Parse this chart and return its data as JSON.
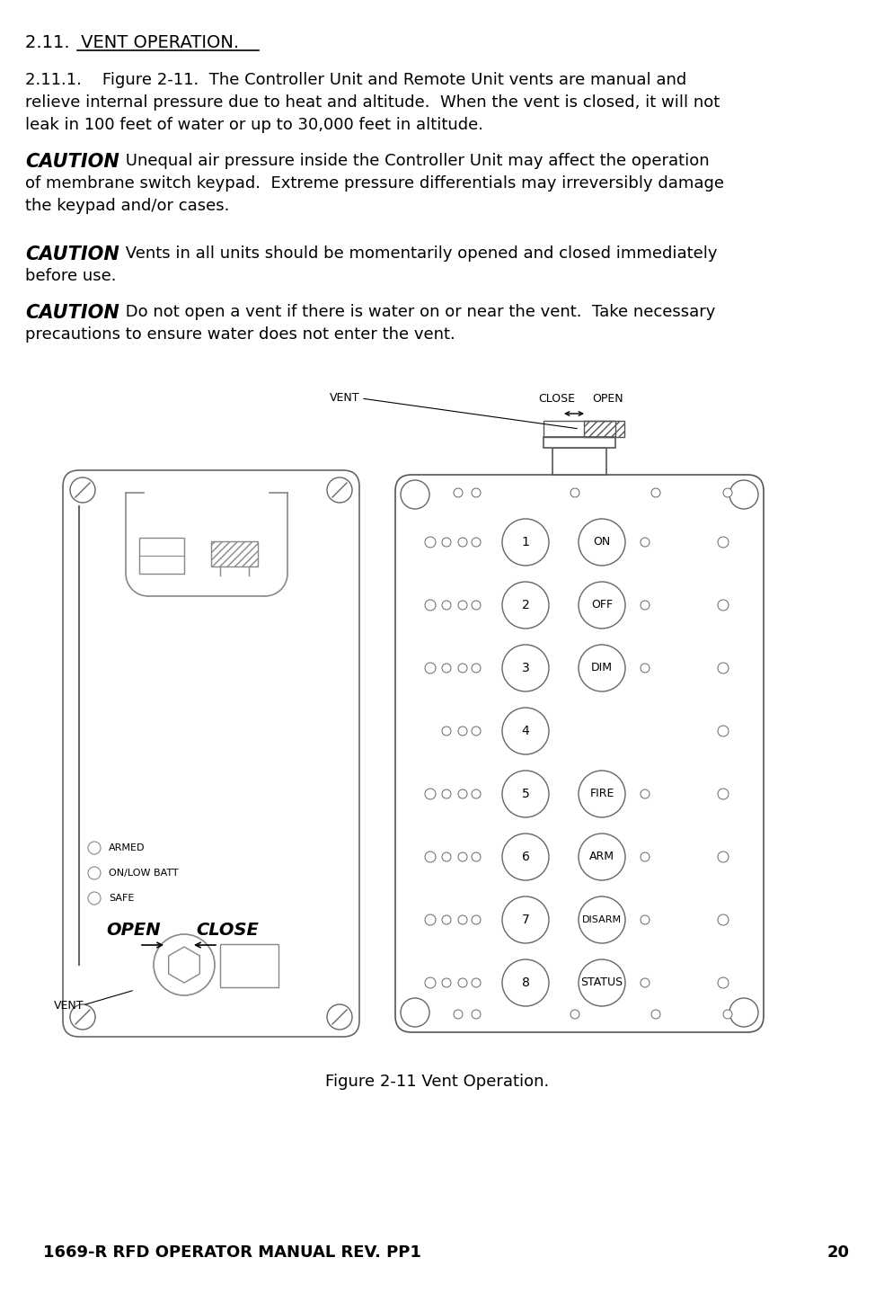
{
  "title": "2.11.  VENT OPERATION.",
  "para1_line1": "2.11.1.    Figure 2-11.  The Controller Unit and Remote Unit vents are manual and",
  "para1_line2": "relieve internal pressure due to heat and altitude.  When the vent is closed, it will not",
  "para1_line3": "leak in 100 feet of water or up to 30,000 feet in altitude.",
  "caution1_text": " Unequal air pressure inside the Controller Unit may affect the operation",
  "caution1_line2": "of membrane switch keypad.  Extreme pressure differentials may irreversibly damage",
  "caution1_line3": "the keypad and/or cases.",
  "caution2_text": " Vents in all units should be momentarily opened and closed immediately",
  "caution2_line2": "before use.",
  "caution3_text": " Do not open a vent if there is water on or near the vent.  Take necessary",
  "caution3_line2": "precautions to ensure water does not enter the vent.",
  "figure_caption": "Figure 2-11 Vent Operation.",
  "footer": "1669-R RFD OPERATOR MANUAL REV. PP1",
  "page_number": "20",
  "bg_color": "#ffffff",
  "text_color": "#000000"
}
